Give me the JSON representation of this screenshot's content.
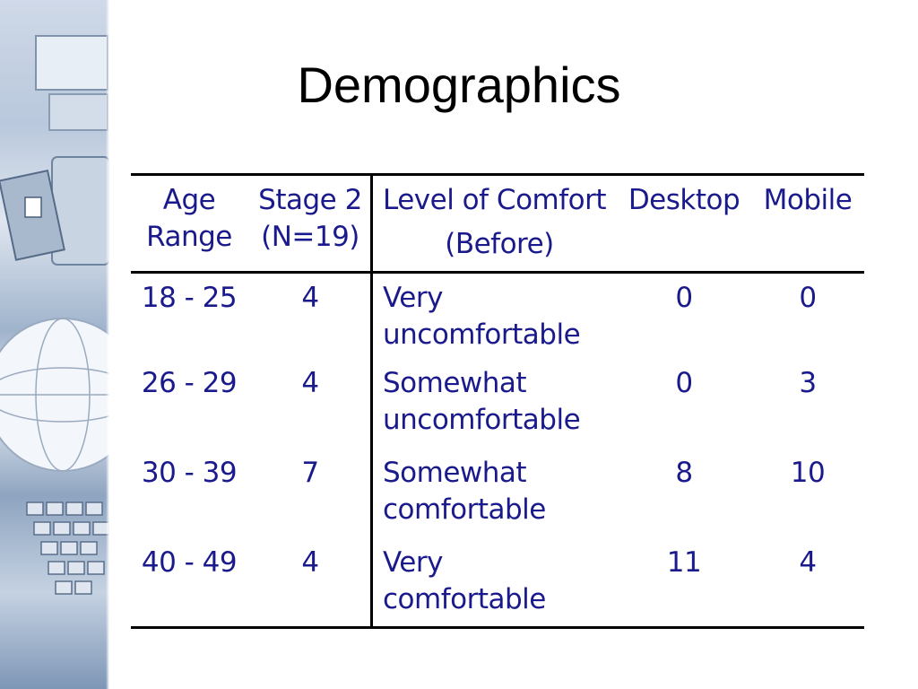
{
  "title": "Demographics",
  "table": {
    "headers": {
      "age": [
        "Age",
        "Range"
      ],
      "stage": [
        "Stage 2",
        "(N=19)"
      ],
      "comfort": "Level of Comfort",
      "comfort_sub": "(Before)",
      "desktop": "Desktop",
      "mobile": "Mobile"
    },
    "rows": [
      {
        "age": "18 - 25",
        "stage": "4",
        "comfort": [
          "Very",
          "uncomfortable"
        ],
        "desktop": "0",
        "mobile": "0"
      },
      {
        "age": "26 - 29",
        "stage": "4",
        "comfort": [
          "Somewhat",
          "uncomfortable"
        ],
        "desktop": "0",
        "mobile": "3"
      },
      {
        "age": "30 - 39",
        "stage": "7",
        "comfort": [
          "Somewhat",
          "comfortable"
        ],
        "desktop": "8",
        "mobile": "10"
      },
      {
        "age": "40 - 49",
        "stage": "4",
        "comfort": [
          "Very",
          "comfortable"
        ],
        "desktop": "11",
        "mobile": "4"
      }
    ]
  },
  "colors": {
    "text": "#1a1a8c",
    "rules": "#000000"
  },
  "decor": {
    "left_strip": "computer-keyboard-globe-image"
  }
}
